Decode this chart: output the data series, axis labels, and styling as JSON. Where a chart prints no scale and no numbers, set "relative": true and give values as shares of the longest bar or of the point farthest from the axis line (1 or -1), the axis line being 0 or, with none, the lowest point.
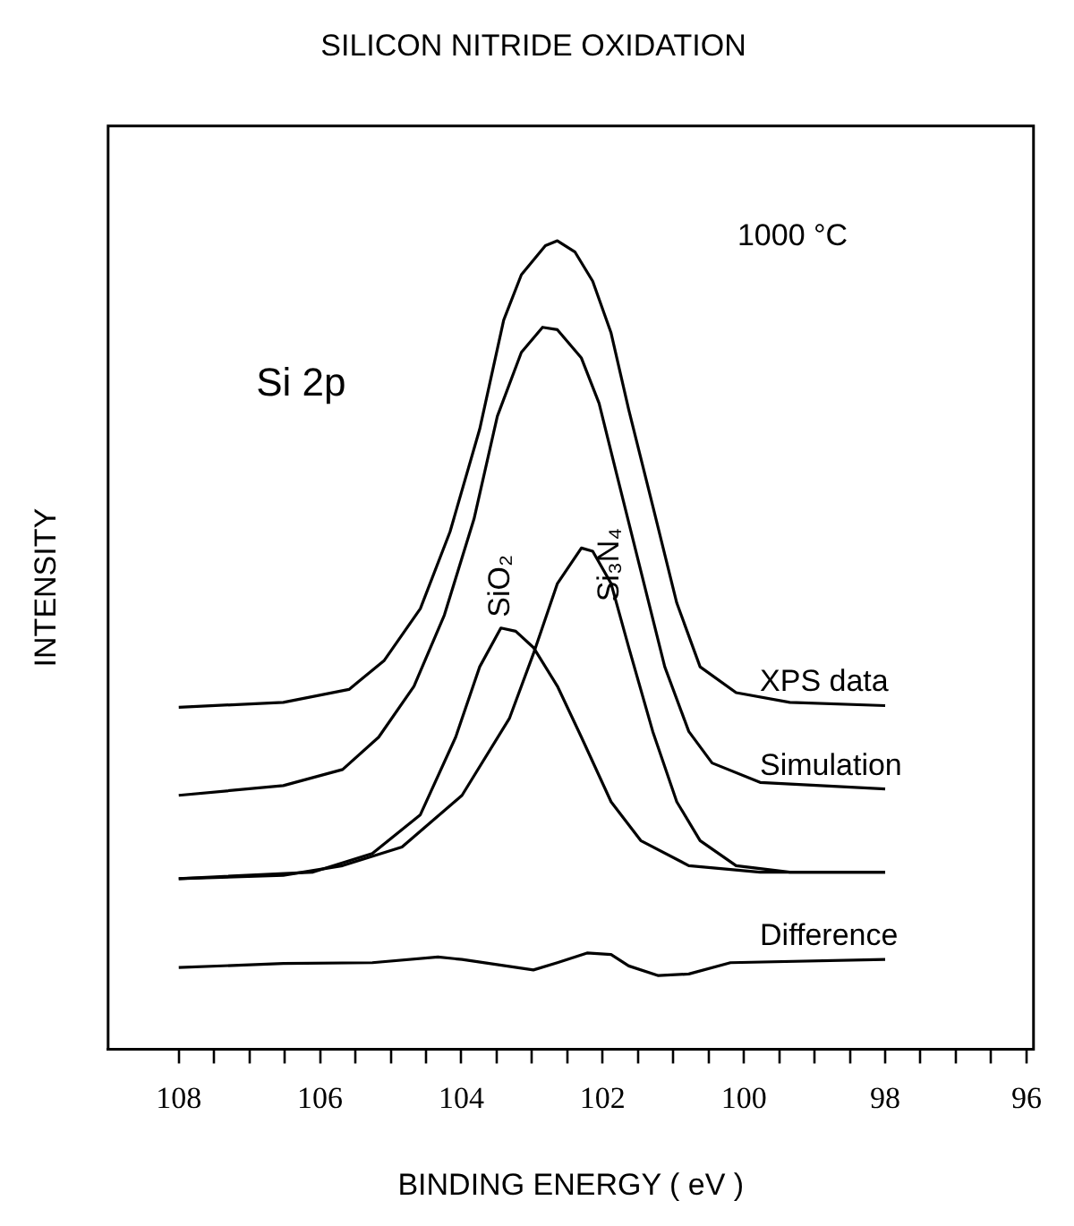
{
  "chart_data": {
    "type": "line",
    "title": "SILICON NITRIDE OXIDATION",
    "xlabel": "BINDING ENERGY ( eV )",
    "ylabel": "INTENSITY",
    "relative": true,
    "marker": "none",
    "line_style": "solid",
    "grid": false,
    "legend": false,
    "xlim": [
      109,
      95.9
    ],
    "xticks": [
      108,
      {
        "value": 107.5,
        "label": null
      },
      {
        "value": 107,
        "label": null
      },
      {
        "value": 106.5,
        "label": null
      },
      106,
      {
        "value": 105.5,
        "label": null
      },
      {
        "value": 105,
        "label": null
      },
      {
        "value": 104.5,
        "label": null
      },
      104,
      {
        "value": 103.5,
        "label": null
      },
      {
        "value": 103,
        "label": null
      },
      {
        "value": 102.5,
        "label": null
      },
      102,
      {
        "value": 101.5,
        "label": null
      },
      {
        "value": 101,
        "label": null
      },
      {
        "value": 100.5,
        "label": null
      },
      100,
      {
        "value": 99.5,
        "label": null
      },
      {
        "value": 99,
        "label": null
      },
      {
        "value": 98.5,
        "label": null
      },
      98,
      {
        "value": 97.5,
        "label": null
      },
      {
        "value": 97,
        "label": null
      },
      {
        "value": 96.5,
        "label": null
      },
      96
    ],
    "annotations": [
      "Si 2p",
      "1000 °C"
    ],
    "series": [
      {
        "name": "XPS data",
        "color": "#000000",
        "x": [
          108,
          106.52,
          105.59,
          105.09,
          104.58,
          104.16,
          103.74,
          103.4,
          103.15,
          102.81,
          102.64,
          102.39,
          102.14,
          101.88,
          101.63,
          101.29,
          100.95,
          100.62,
          100.11,
          99.35,
          98
        ],
        "values": [
          0.423,
          0.429,
          0.445,
          0.481,
          0.545,
          0.64,
          0.767,
          0.902,
          0.958,
          0.994,
          1,
          0.986,
          0.95,
          0.886,
          0.791,
          0.672,
          0.552,
          0.473,
          0.441,
          0.429,
          0.425
        ]
      },
      {
        "name": "Simulation",
        "color": "#000000",
        "x": [
          108,
          106.52,
          105.68,
          105.17,
          104.67,
          104.24,
          103.82,
          103.49,
          103.15,
          102.85,
          102.64,
          102.3,
          102.05,
          101.8,
          101.46,
          101.12,
          100.78,
          100.45,
          99.77,
          98
        ],
        "values": [
          0.314,
          0.326,
          0.346,
          0.386,
          0.449,
          0.537,
          0.656,
          0.783,
          0.862,
          0.893,
          0.89,
          0.855,
          0.799,
          0.711,
          0.592,
          0.473,
          0.393,
          0.354,
          0.33,
          0.322
        ]
      },
      {
        "name": "SiO₂",
        "color": "#000000",
        "x": [
          108,
          106.1,
          105.26,
          104.58,
          104.08,
          103.74,
          103.44,
          103.23,
          102.98,
          102.64,
          102.3,
          101.88,
          101.46,
          100.78,
          99.77,
          98
        ],
        "values": [
          0.211,
          0.219,
          0.242,
          0.29,
          0.386,
          0.473,
          0.521,
          0.517,
          0.497,
          0.449,
          0.386,
          0.306,
          0.258,
          0.227,
          0.219,
          0.219
        ]
      },
      {
        "name": "Si₃N₄",
        "color": "#000000",
        "x": [
          108,
          106.52,
          105.68,
          104.84,
          103.99,
          103.32,
          102.98,
          102.64,
          102.3,
          102.14,
          101.88,
          101.63,
          101.29,
          100.95,
          100.62,
          100.11,
          99.35,
          98
        ],
        "values": [
          0.211,
          0.215,
          0.227,
          0.25,
          0.314,
          0.409,
          0.489,
          0.576,
          0.62,
          0.616,
          0.576,
          0.497,
          0.393,
          0.306,
          0.258,
          0.227,
          0.219,
          0.219
        ]
      },
      {
        "name": "Difference",
        "color": "#000000",
        "x": [
          108,
          106.52,
          105.26,
          104.33,
          103.99,
          102.98,
          102.64,
          102.22,
          101.88,
          101.63,
          101.21,
          100.78,
          100.19,
          98
        ],
        "values": [
          0.101,
          0.106,
          0.107,
          0.114,
          0.111,
          0.098,
          0.107,
          0.119,
          0.117,
          0.103,
          0.091,
          0.093,
          0.107,
          0.111
        ]
      }
    ]
  }
}
